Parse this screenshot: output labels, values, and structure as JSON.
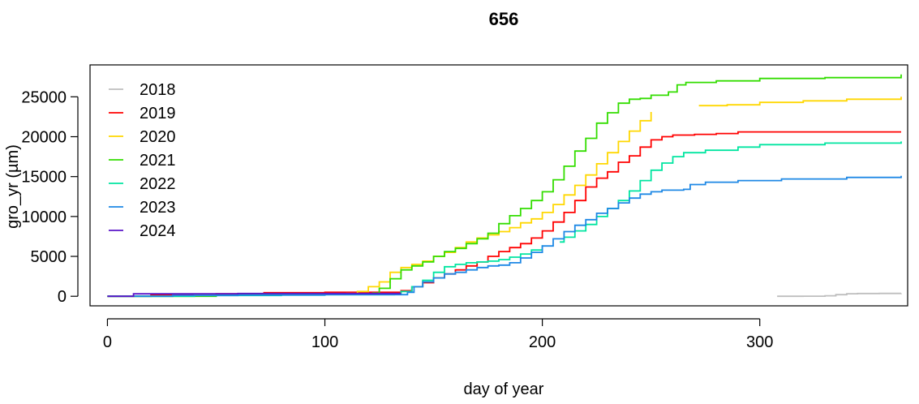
{
  "chart_data": {
    "type": "line",
    "title": "656",
    "xlabel": "day of year",
    "ylabel": "gro_yr (µm)",
    "xlim": [
      -8,
      368
    ],
    "ylim": [
      -1200,
      29000
    ],
    "xticks": [
      0,
      100,
      200,
      300
    ],
    "yticks": [
      0,
      5000,
      10000,
      15000,
      20000,
      25000
    ],
    "xtick_labels": [
      "0",
      "100",
      "200",
      "300"
    ],
    "ytick_labels": [
      "0",
      "5000",
      "10000",
      "15000",
      "20000",
      "25000"
    ],
    "grid": false,
    "legend_position": "top-left",
    "series": [
      {
        "name": "2018",
        "color": "#bebebe",
        "segments": [
          [
            [
              308,
              0
            ],
            [
              320,
              10
            ],
            [
              330,
              60
            ],
            [
              335,
              200
            ],
            [
              340,
              320
            ],
            [
              345,
              350
            ],
            [
              355,
              360
            ],
            [
              365,
              370
            ]
          ]
        ]
      },
      {
        "name": "2019",
        "color": "#ff0000",
        "segments": [
          [
            [
              0,
              0
            ],
            [
              20,
              150
            ],
            [
              50,
              300
            ],
            [
              72,
              450
            ],
            [
              100,
              500
            ],
            [
              133,
              500
            ],
            [
              135,
              700
            ],
            [
              140,
              1200
            ],
            [
              145,
              1700
            ],
            [
              150,
              2300
            ],
            [
              155,
              2800
            ],
            [
              160,
              3300
            ],
            [
              165,
              3800
            ],
            [
              170,
              4300
            ],
            [
              175,
              5000
            ],
            [
              180,
              5600
            ],
            [
              185,
              6100
            ],
            [
              190,
              6600
            ],
            [
              195,
              7300
            ],
            [
              200,
              8200
            ],
            [
              205,
              9300
            ],
            [
              210,
              10500
            ],
            [
              215,
              12000
            ],
            [
              220,
              13700
            ],
            [
              225,
              14800
            ],
            [
              230,
              15600
            ],
            [
              235,
              16800
            ],
            [
              240,
              17600
            ],
            [
              245,
              18700
            ],
            [
              250,
              19600
            ],
            [
              255,
              20000
            ],
            [
              260,
              20200
            ],
            [
              270,
              20300
            ],
            [
              280,
              20400
            ],
            [
              290,
              20600
            ],
            [
              310,
              20600
            ],
            [
              340,
              20600
            ],
            [
              365,
              20600
            ]
          ]
        ]
      },
      {
        "name": "2020",
        "color": "#ffd700",
        "segments": [
          [
            [
              0,
              0
            ],
            [
              40,
              200
            ],
            [
              80,
              300
            ],
            [
              110,
              350
            ],
            [
              115,
              600
            ],
            [
              120,
              1200
            ],
            [
              125,
              1800
            ],
            [
              130,
              3000
            ],
            [
              135,
              3600
            ],
            [
              140,
              4000
            ],
            [
              145,
              4400
            ],
            [
              150,
              5000
            ],
            [
              155,
              5500
            ],
            [
              160,
              6100
            ],
            [
              165,
              6800
            ],
            [
              170,
              7300
            ],
            [
              175,
              7700
            ],
            [
              180,
              8100
            ],
            [
              185,
              8600
            ],
            [
              190,
              9200
            ],
            [
              195,
              9700
            ],
            [
              200,
              10500
            ],
            [
              205,
              11500
            ],
            [
              210,
              12700
            ],
            [
              215,
              13900
            ],
            [
              220,
              15200
            ],
            [
              225,
              16600
            ],
            [
              230,
              18000
            ],
            [
              235,
              19400
            ],
            [
              240,
              20700
            ],
            [
              245,
              22000
            ],
            [
              250,
              23100
            ]
          ],
          [
            [
              272,
              23900
            ],
            [
              285,
              24000
            ],
            [
              300,
              24300
            ],
            [
              320,
              24500
            ],
            [
              340,
              24700
            ],
            [
              365,
              25000
            ]
          ]
        ]
      },
      {
        "name": "2021",
        "color": "#33dd00",
        "segments": [
          [
            [
              0,
              0
            ],
            [
              50,
              200
            ],
            [
              100,
              300
            ],
            [
              122,
              400
            ],
            [
              125,
              1000
            ],
            [
              130,
              2200
            ],
            [
              135,
              3300
            ],
            [
              140,
              3800
            ],
            [
              145,
              4300
            ],
            [
              150,
              5000
            ],
            [
              155,
              5600
            ],
            [
              160,
              6000
            ],
            [
              165,
              6600
            ],
            [
              170,
              7200
            ],
            [
              175,
              7900
            ],
            [
              180,
              9100
            ],
            [
              185,
              10100
            ],
            [
              190,
              11000
            ],
            [
              195,
              12000
            ],
            [
              200,
              13100
            ],
            [
              205,
              14600
            ],
            [
              210,
              16300
            ],
            [
              215,
              18200
            ],
            [
              220,
              19800
            ],
            [
              225,
              21700
            ],
            [
              230,
              23000
            ],
            [
              235,
              24200
            ],
            [
              240,
              24700
            ],
            [
              245,
              24800
            ],
            [
              250,
              25200
            ],
            [
              258,
              25600
            ],
            [
              262,
              26500
            ],
            [
              266,
              26800
            ],
            [
              280,
              27000
            ],
            [
              300,
              27300
            ],
            [
              330,
              27400
            ],
            [
              365,
              27800
            ]
          ]
        ]
      },
      {
        "name": "2022",
        "color": "#00e5a0",
        "segments": [
          [
            [
              0,
              0
            ],
            [
              40,
              100
            ],
            [
              80,
              150
            ],
            [
              100,
              200
            ],
            [
              132,
              300
            ],
            [
              135,
              600
            ],
            [
              140,
              1200
            ],
            [
              145,
              2000
            ],
            [
              150,
              3000
            ],
            [
              155,
              3700
            ],
            [
              160,
              4000
            ],
            [
              165,
              4200
            ],
            [
              170,
              4300
            ],
            [
              175,
              4400
            ],
            [
              180,
              4600
            ],
            [
              185,
              4900
            ],
            [
              190,
              5300
            ],
            [
              195,
              5800
            ],
            [
              200,
              6400
            ]
          ],
          [
            [
              208,
              6800
            ],
            [
              210,
              7400
            ],
            [
              215,
              8200
            ],
            [
              220,
              9000
            ],
            [
              225,
              10000
            ],
            [
              230,
              11000
            ],
            [
              235,
              12000
            ],
            [
              240,
              13200
            ],
            [
              245,
              14500
            ],
            [
              250,
              15800
            ],
            [
              255,
              16700
            ],
            [
              260,
              17500
            ],
            [
              265,
              18000
            ],
            [
              275,
              18300
            ],
            [
              290,
              18700
            ],
            [
              300,
              19000
            ],
            [
              330,
              19200
            ],
            [
              365,
              19400
            ]
          ]
        ]
      },
      {
        "name": "2023",
        "color": "#1e88e5",
        "segments": [
          [
            [
              0,
              0
            ],
            [
              30,
              100
            ],
            [
              60,
              150
            ],
            [
              100,
              200
            ],
            [
              135,
              200
            ],
            [
              138,
              500
            ],
            [
              141,
              1200
            ],
            [
              145,
              1800
            ],
            [
              150,
              2300
            ],
            [
              155,
              2800
            ],
            [
              160,
              3000
            ],
            [
              165,
              3300
            ],
            [
              170,
              3600
            ],
            [
              175,
              3800
            ],
            [
              180,
              3900
            ],
            [
              185,
              4200
            ],
            [
              190,
              4800
            ],
            [
              195,
              5500
            ],
            [
              200,
              6300
            ],
            [
              205,
              7200
            ],
            [
              210,
              8100
            ],
            [
              215,
              8900
            ],
            [
              220,
              9600
            ],
            [
              225,
              10400
            ],
            [
              230,
              11000
            ],
            [
              235,
              11700
            ],
            [
              240,
              12300
            ],
            [
              245,
              12800
            ],
            [
              250,
              13100
            ],
            [
              255,
              13300
            ],
            [
              265,
              13400
            ],
            [
              268,
              14000
            ],
            [
              275,
              14300
            ],
            [
              290,
              14500
            ],
            [
              310,
              14700
            ],
            [
              340,
              14900
            ],
            [
              365,
              15100
            ]
          ]
        ]
      },
      {
        "name": "2024",
        "color": "#5a14c8",
        "segments": [
          [
            [
              0,
              0
            ],
            [
              12,
              300
            ],
            [
              30,
              300
            ],
            [
              60,
              350
            ],
            [
              90,
              350
            ],
            [
              100,
              350
            ],
            [
              135,
              350
            ]
          ]
        ]
      }
    ]
  }
}
